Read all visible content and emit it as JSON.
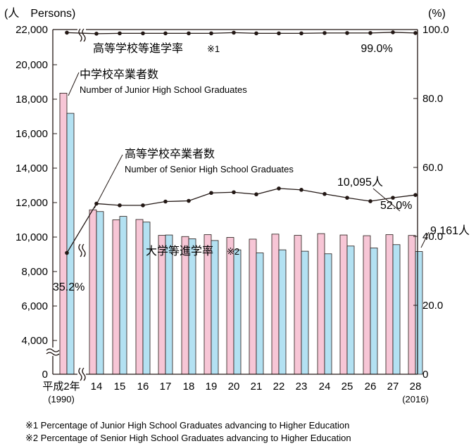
{
  "chart_data": {
    "type": "bar",
    "left_axis_unit": "(人　Persons)",
    "right_axis_unit": "(%)",
    "left_ticks": [
      "0",
      "4,000",
      "6,000",
      "8,000",
      "10,000",
      "12,000",
      "14,000",
      "16,000",
      "18,000",
      "20,000",
      "22,000"
    ],
    "right_ticks": [
      "0",
      "20.0",
      "40.0",
      "60.0",
      "80.0",
      "100.0"
    ],
    "categories": [
      "平成2年",
      "14",
      "15",
      "16",
      "17",
      "18",
      "19",
      "20",
      "21",
      "22",
      "23",
      "24",
      "25",
      "26",
      "27",
      "28"
    ],
    "category_sub": [
      [
        "(1990)",
        0
      ],
      [
        "(2016)",
        15
      ]
    ],
    "colors": {
      "junior": "#f7c6d6",
      "senior": "#b3e1f2",
      "line": "#231815"
    },
    "series": [
      {
        "name": "中学校卒業者数",
        "name_en": "Number of Junior High School Graduates",
        "values": [
          18350,
          11580,
          11000,
          11020,
          10100,
          10030,
          10140,
          9980,
          9880,
          10170,
          10100,
          10200,
          10120,
          10080,
          10140,
          10095
        ]
      },
      {
        "name": "高等学校卒業者数",
        "name_en": "Number of  Senior High School Graduates",
        "values": [
          17180,
          11480,
          11200,
          10870,
          10120,
          9900,
          9800,
          9260,
          9080,
          9260,
          9180,
          9030,
          9480,
          9370,
          9560,
          9161
        ]
      },
      {
        "name": "高等学校等進学率",
        "note": "※1",
        "values": [
          99.1,
          98.8,
          98.9,
          98.9,
          98.9,
          98.9,
          98.9,
          99.1,
          98.9,
          98.9,
          98.9,
          99.0,
          99.0,
          99.0,
          99.2,
          99.0
        ]
      },
      {
        "name": "大学等進学率",
        "note": "※2",
        "values": [
          35.2,
          49.5,
          49.0,
          49.0,
          50.1,
          50.3,
          52.6,
          52.8,
          52.2,
          53.9,
          53.5,
          52.3,
          51.2,
          50.2,
          51.2,
          52.0
        ]
      }
    ],
    "annotations": {
      "junior_last": "10,095人",
      "senior_last": "9,161人",
      "hs_rate_last": "99.0%",
      "univ_rate_last": "52.0%",
      "univ_rate_first": "35.2%"
    },
    "footnotes": [
      "※1 Percentage of Junior High School Graduates advancing to Higher Education",
      "※2 Percentage of Senior High School Graduates advancing to Higher Education"
    ],
    "left_ylim": [
      0,
      22000
    ],
    "right_ylim": [
      0,
      100
    ],
    "broken_axis": true
  }
}
